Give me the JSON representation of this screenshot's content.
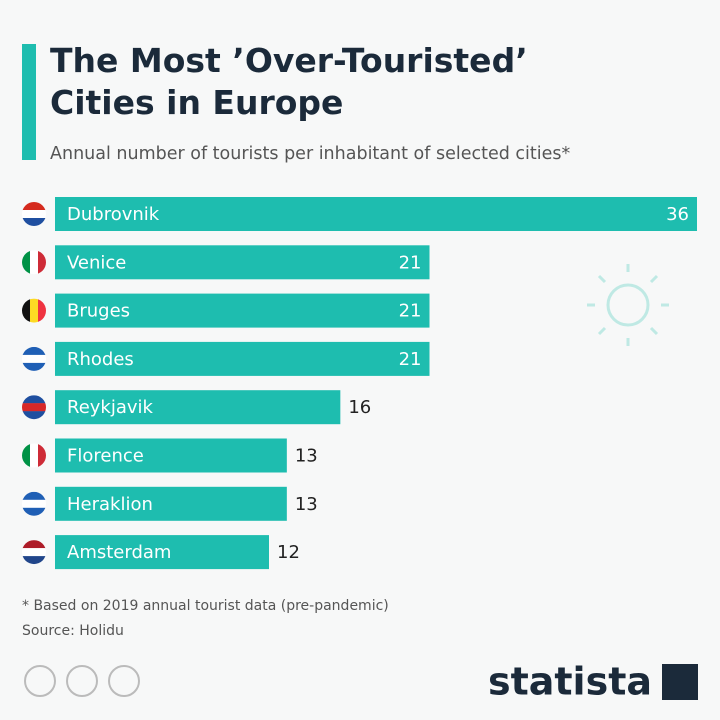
{
  "chart_data": {
    "type": "bar",
    "orientation": "horizontal",
    "title": "The Most ’Over-Touristed’ Cities in Europe",
    "subtitle": "Annual number of tourists per inhabitant of selected cities*",
    "categories": [
      "Dubrovnik",
      "Venice",
      "Bruges",
      "Rhodes",
      "Reykjavik",
      "Florence",
      "Heraklion",
      "Amsterdam"
    ],
    "values": [
      36,
      21,
      21,
      21,
      16,
      13,
      13,
      12
    ],
    "color": "#1ebdaf",
    "footnote": "* Based on 2019 annual tourist data (pre-pandemic)",
    "source": "Source: Holidu",
    "logo": "statista"
  }
}
